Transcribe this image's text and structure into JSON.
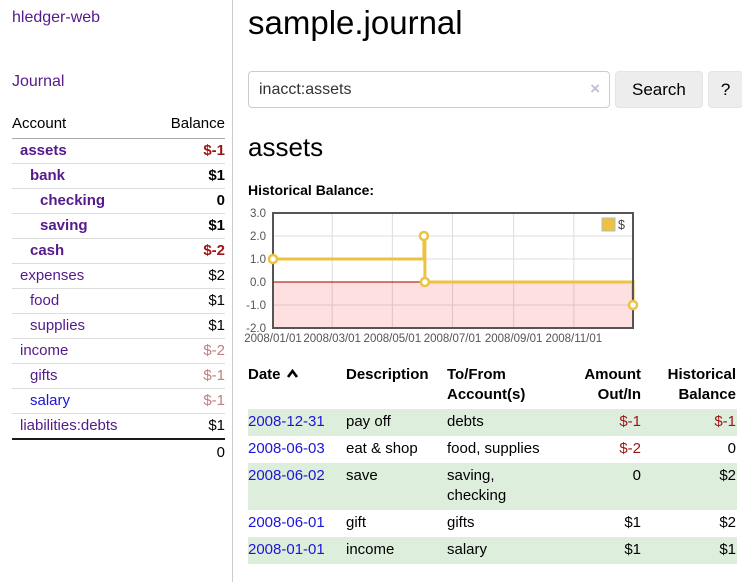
{
  "sidebar": {
    "brand": "hledger-web",
    "nav_journal": "Journal",
    "headers": {
      "account": "Account",
      "balance": "Balance"
    },
    "accounts": [
      {
        "name": "assets",
        "depth": 1,
        "in_query": true,
        "balance": "$-1",
        "tone": "neg"
      },
      {
        "name": "bank",
        "depth": 2,
        "in_query": true,
        "balance": "$1",
        "tone": ""
      },
      {
        "name": "checking",
        "depth": 3,
        "in_query": true,
        "balance": "0",
        "tone": ""
      },
      {
        "name": "saving",
        "depth": 3,
        "in_query": true,
        "balance": "$1",
        "tone": ""
      },
      {
        "name": "cash",
        "depth": 2,
        "in_query": true,
        "balance": "$-2",
        "tone": "neg"
      },
      {
        "name": "expenses",
        "depth": 1,
        "in_query": false,
        "balance": "$2",
        "tone": ""
      },
      {
        "name": "food",
        "depth": 2,
        "in_query": false,
        "balance": "$1",
        "tone": ""
      },
      {
        "name": "supplies",
        "depth": 2,
        "in_query": false,
        "balance": "$1",
        "tone": ""
      },
      {
        "name": "income",
        "depth": 1,
        "in_query": false,
        "balance": "$-2",
        "tone": "muted"
      },
      {
        "name": "gifts",
        "depth": 2,
        "in_query": false,
        "balance": "$-1",
        "tone": "muted"
      },
      {
        "name": "salary",
        "depth": 2,
        "in_query": false,
        "link_style": "blue",
        "balance": "$-1",
        "tone": "muted"
      },
      {
        "name": "liabilities:debts",
        "depth": 1,
        "in_query": false,
        "balance": "$1",
        "tone": ""
      }
    ],
    "total": "0"
  },
  "header": {
    "title": "sample.journal"
  },
  "search": {
    "value": "inacct:assets",
    "clear_icon": "×",
    "button_label": "Search",
    "help_label": "?"
  },
  "account_heading": "assets",
  "chart_label": "Historical Balance:",
  "chart_data": {
    "type": "line",
    "title": "Historical Balance",
    "step": true,
    "series": [
      {
        "name": "$",
        "color": "#edc240",
        "points": [
          {
            "date": "2008/01/01",
            "day": 0,
            "value": 1
          },
          {
            "date": "2008/06/02",
            "day": 153,
            "value": 2
          },
          {
            "date": "2008/06/03",
            "day": 154,
            "value": 0
          },
          {
            "date": "2008/12/31",
            "day": 365,
            "value": -1
          }
        ]
      }
    ],
    "x_range_days": [
      0,
      365
    ],
    "x_ticks": [
      {
        "day": 0,
        "label": "2008/01/01"
      },
      {
        "day": 60,
        "label": "2008/03/01"
      },
      {
        "day": 121,
        "label": "2008/05/01"
      },
      {
        "day": 182,
        "label": "2008/07/01"
      },
      {
        "day": 244,
        "label": "2008/09/01"
      },
      {
        "day": 305,
        "label": "2008/11/01"
      }
    ],
    "y_ticks": [
      "3.0",
      "2.0",
      "1.0",
      "0.0",
      "-1.0",
      "-2.0"
    ],
    "ylim": [
      -2,
      3
    ],
    "grid": true,
    "legend_position": "top-right",
    "style": {
      "line_color": "#edc240",
      "marker_fill": "#ffffff",
      "negative_fill": "rgba(255,60,60,0.16)",
      "zero_line": "#9c0000",
      "grid_color": "#dcdcdc",
      "border_color": "#555555",
      "tick_color": "#545454"
    }
  },
  "register": {
    "columns": [
      {
        "lines": [
          "Date"
        ],
        "align": "left",
        "sortable": true
      },
      {
        "lines": [
          "Description"
        ],
        "align": "left"
      },
      {
        "lines": [
          "To/From",
          "Account(s)"
        ],
        "align": "left"
      },
      {
        "lines": [
          "Amount",
          "Out/In"
        ],
        "align": "right"
      },
      {
        "lines": [
          "Historical",
          "Balance"
        ],
        "align": "right"
      }
    ],
    "rows": [
      {
        "date": "2008-12-31",
        "description": "pay off",
        "accounts": "debts",
        "amount": "$-1",
        "amount_negative": true,
        "balance": "$-1",
        "balance_negative": true
      },
      {
        "date": "2008-06-03",
        "description": "eat & shop",
        "accounts": "food, supplies",
        "amount": "$-2",
        "amount_negative": true,
        "balance": "0",
        "balance_negative": false
      },
      {
        "date": "2008-06-02",
        "description": "save",
        "accounts": "saving, checking",
        "amount": "0",
        "amount_negative": false,
        "balance": "$2",
        "balance_negative": false
      },
      {
        "date": "2008-06-01",
        "description": "gift",
        "accounts": "gifts",
        "amount": "$1",
        "amount_negative": false,
        "balance": "$2",
        "balance_negative": false
      },
      {
        "date": "2008-01-01",
        "description": "income",
        "accounts": "salary",
        "amount": "$1",
        "amount_negative": false,
        "balance": "$1",
        "balance_negative": false
      }
    ]
  }
}
